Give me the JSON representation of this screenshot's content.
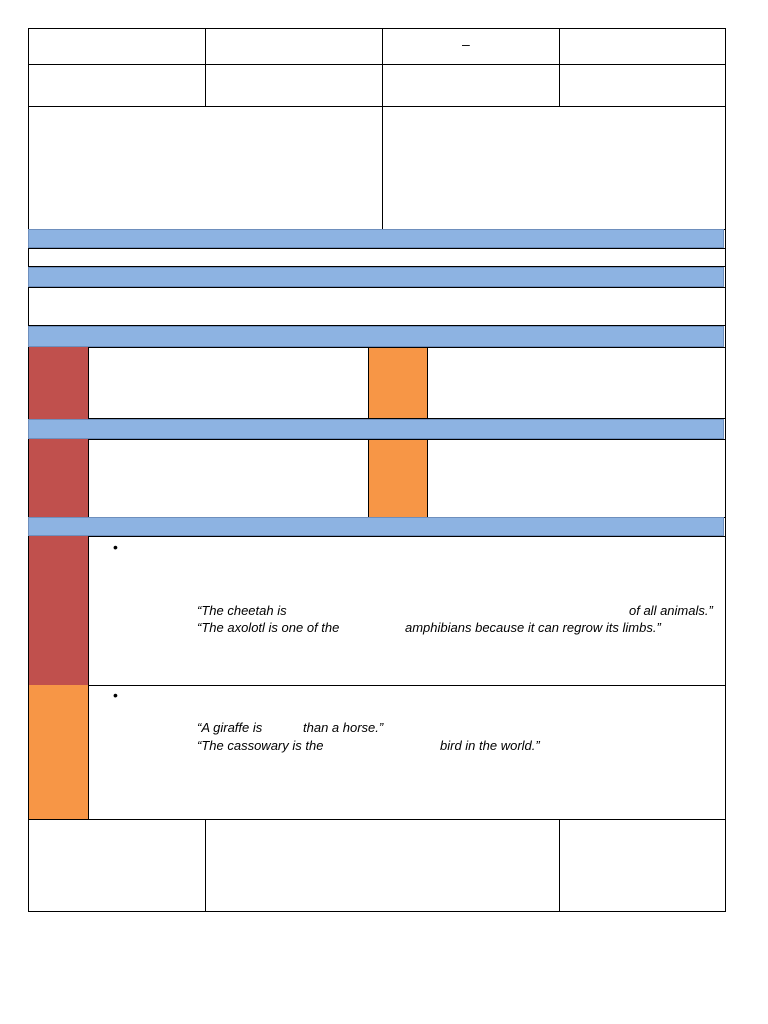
{
  "header": {
    "dash": "–"
  },
  "superlatives": {
    "line1_start": "“The cheetah is",
    "line1_end": "of all animals.”",
    "line2_start": "“The axolotl is one of the",
    "line2_end": "amphibians because it can regrow its limbs.”"
  },
  "comparatives": {
    "line1_start": "“A giraffe is",
    "line1_end": "than a horse.”",
    "line2_start": "“The cassowary is the",
    "line2_end": "bird in the world.”"
  },
  "bullets": {
    "symbol": "•"
  },
  "colors": {
    "blue_band": "#8db3e2",
    "red_label": "#c0504d",
    "orange_label": "#f79646"
  }
}
